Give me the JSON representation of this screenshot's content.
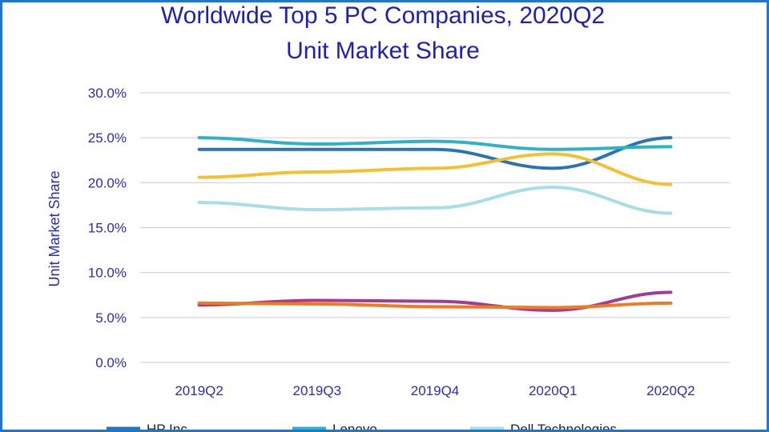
{
  "colors": {
    "hp": "#2a74b6",
    "lenovo": "#2fb1c8",
    "dell": "#a6dde6",
    "apple": "#a23b92",
    "acer": "#f07a22",
    "yellow": "#f5c02e",
    "title": "#1f1fb4",
    "frame": "#1f77c9"
  },
  "chart_data": {
    "type": "line",
    "title_line1": "Worldwide Top 5 PC Companies, 2020Q2",
    "title_line2": "Unit Market Share",
    "ylabel": "Unit Market Share",
    "xlabel": "",
    "categories": [
      "2019Q2",
      "2019Q3",
      "2019Q4",
      "2020Q1",
      "2020Q2"
    ],
    "ylim": [
      0,
      30
    ],
    "yticks": [
      "0.0%",
      "5.0%",
      "10.0%",
      "15.0%",
      "20.0%",
      "25.0%",
      "30.0%"
    ],
    "grid": true,
    "legend_position": "bottom",
    "series": [
      {
        "name": "HP Inc",
        "color": "#2a74b6",
        "values": [
          23.7,
          23.7,
          23.7,
          21.6,
          25.0
        ],
        "legend": true
      },
      {
        "name": "Lenovo",
        "color": "#2fb1c8",
        "values": [
          25.0,
          24.3,
          24.6,
          23.7,
          24.0
        ],
        "legend": true
      },
      {
        "name": "Dell Technologies",
        "color": "#a6dde6",
        "values": [
          17.8,
          17.0,
          17.2,
          19.5,
          16.6
        ],
        "legend": true
      },
      {
        "name": "",
        "color": "#f5c02e",
        "values": [
          20.6,
          21.2,
          21.6,
          23.2,
          19.8
        ],
        "legend": false
      },
      {
        "name": "",
        "color": "#a23b92",
        "values": [
          6.4,
          6.9,
          6.8,
          5.8,
          7.8
        ],
        "legend": false
      },
      {
        "name": "",
        "color": "#f07a22",
        "values": [
          6.6,
          6.5,
          6.2,
          6.1,
          6.6
        ],
        "legend": false
      }
    ]
  }
}
